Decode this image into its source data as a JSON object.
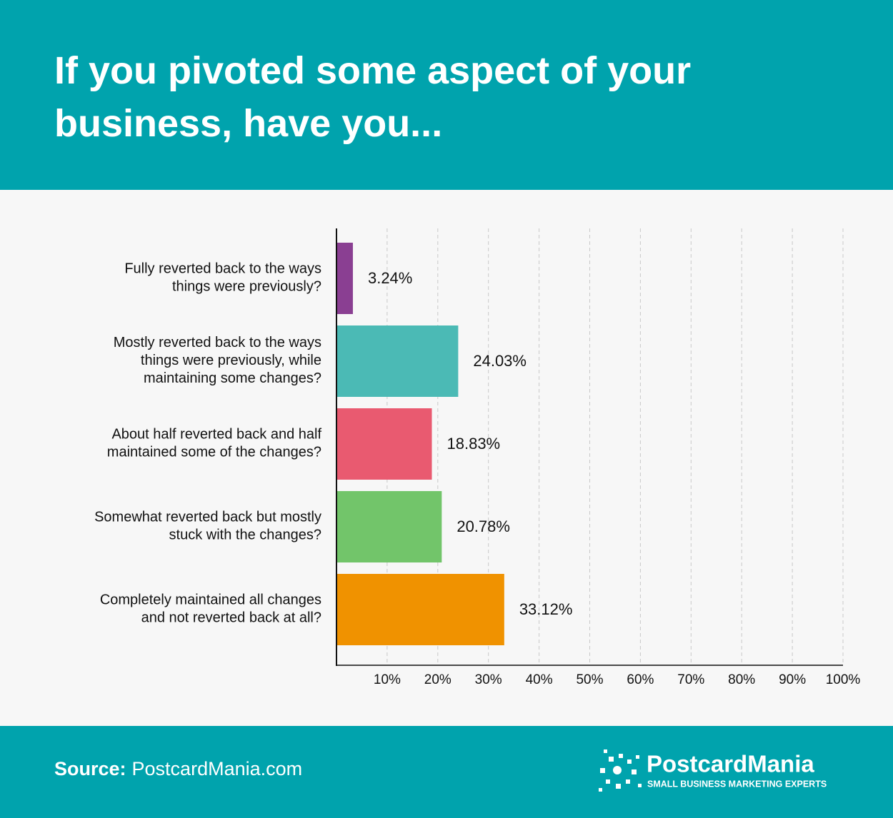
{
  "chart_data": {
    "type": "bar",
    "orientation": "horizontal",
    "title": "If you pivoted some aspect of your business, have you...",
    "categories": [
      [
        "Fully reverted back to the ways",
        "things were previously?"
      ],
      [
        "Mostly reverted back to the ways",
        "things were previously, while",
        "maintaining some changes?"
      ],
      [
        "About half reverted back and half",
        "maintained some of the changes?"
      ],
      [
        "Somewhat reverted back but mostly",
        "stuck with the changes?"
      ],
      [
        "Completely maintained all changes",
        "and not reverted back at all?"
      ]
    ],
    "values": [
      3.24,
      24.03,
      18.83,
      20.78,
      33.12
    ],
    "value_labels": [
      "3.24%",
      "24.03%",
      "18.83%",
      "20.78%",
      "33.12%"
    ],
    "colors": [
      "#8a3f92",
      "#4bbab5",
      "#e95a70",
      "#72c56a",
      "#f09200"
    ],
    "xlim": [
      0,
      100
    ],
    "xticks": [
      {
        "value": 10,
        "label": "10%"
      },
      {
        "value": 20,
        "label": "20%"
      },
      {
        "value": 30,
        "label": "30%"
      },
      {
        "value": 40,
        "label": "40%"
      },
      {
        "value": 50,
        "label": "50%"
      },
      {
        "value": 60,
        "label": "60%"
      },
      {
        "value": 70,
        "label": "70%"
      },
      {
        "value": 80,
        "label": "80%"
      },
      {
        "value": 90,
        "label": "90%"
      },
      {
        "value": 100,
        "label": "100%"
      }
    ],
    "grid": true
  },
  "footer": {
    "source_label": "Source:",
    "source": "PostcardMania.com",
    "brand": "PostcardMania",
    "tagline": "SMALL BUSINESS MARKETING EXPERTS"
  }
}
